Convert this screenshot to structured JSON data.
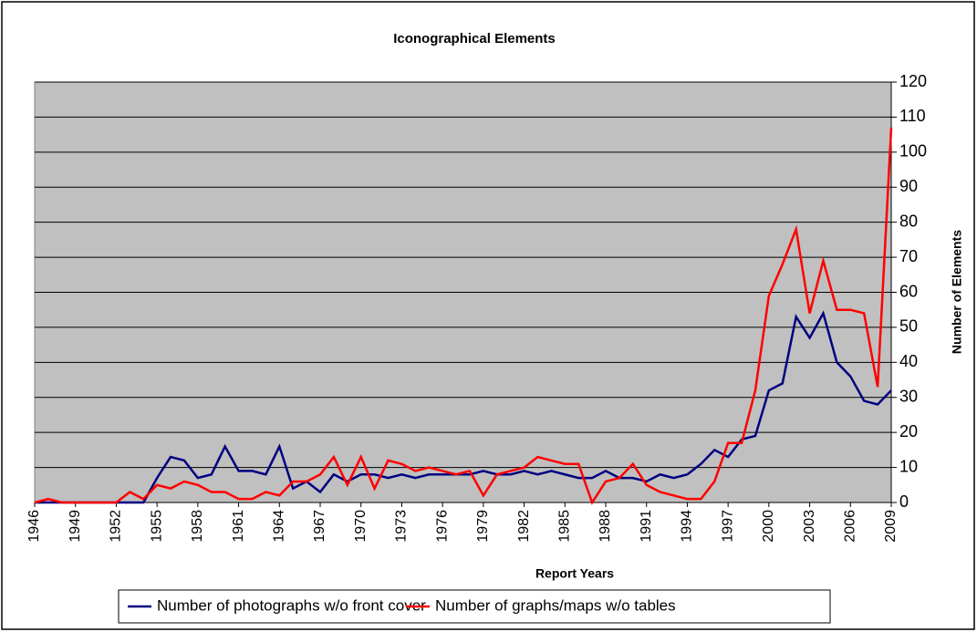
{
  "chart_data": {
    "type": "line",
    "title": "Iconographical Elements",
    "x_label": "Report Years",
    "y_label": "Number of Elements",
    "x": [
      1946,
      1947,
      1948,
      1949,
      1950,
      1951,
      1952,
      1953,
      1954,
      1955,
      1956,
      1957,
      1958,
      1959,
      1960,
      1961,
      1962,
      1963,
      1964,
      1965,
      1966,
      1967,
      1968,
      1969,
      1970,
      1971,
      1972,
      1973,
      1974,
      1975,
      1976,
      1977,
      1978,
      1979,
      1980,
      1981,
      1982,
      1983,
      1984,
      1985,
      1986,
      1987,
      1988,
      1989,
      1990,
      1991,
      1992,
      1993,
      1994,
      1995,
      1996,
      1997,
      1998,
      1999,
      2000,
      2001,
      2002,
      2003,
      2004,
      2005,
      2006,
      2007,
      2008,
      2009
    ],
    "xlim": [
      1946,
      2009
    ],
    "xticks": [
      1946,
      1949,
      1952,
      1955,
      1958,
      1961,
      1964,
      1967,
      1970,
      1973,
      1976,
      1979,
      1982,
      1985,
      1988,
      1991,
      1994,
      1997,
      2000,
      2003,
      2006,
      2009
    ],
    "ylim": [
      0,
      120
    ],
    "yticks": [
      0,
      10,
      20,
      30,
      40,
      50,
      60,
      70,
      80,
      90,
      100,
      110,
      120
    ],
    "y_axis_side": "right",
    "grid": true,
    "legend_position": "bottom",
    "plot_background": "#c0c0c0",
    "series": [
      {
        "name": "Number of photographs w/o front cover",
        "color": "#000080",
        "values": [
          0,
          0,
          0,
          0,
          0,
          0,
          0,
          0,
          0,
          7,
          13,
          12,
          7,
          8,
          16,
          9,
          9,
          8,
          16,
          4,
          6,
          3,
          8,
          6,
          8,
          8,
          7,
          8,
          7,
          8,
          8,
          8,
          8,
          9,
          8,
          8,
          9,
          8,
          9,
          8,
          7,
          7,
          9,
          7,
          7,
          6,
          8,
          7,
          8,
          11,
          15,
          13,
          18,
          19,
          32,
          34,
          53,
          47,
          54,
          40,
          36,
          29,
          28,
          32
        ]
      },
      {
        "name": "Number of graphs/maps w/o tables",
        "color": "#ff0000",
        "values": [
          0,
          1,
          0,
          0,
          0,
          0,
          0,
          3,
          1,
          5,
          4,
          6,
          5,
          3,
          3,
          1,
          1,
          3,
          2,
          6,
          6,
          8,
          13,
          5,
          13,
          4,
          12,
          11,
          9,
          10,
          9,
          8,
          9,
          2,
          8,
          9,
          10,
          13,
          12,
          11,
          11,
          0,
          6,
          7,
          11,
          5,
          3,
          2,
          1,
          1,
          6,
          17,
          17,
          32,
          59,
          68,
          78,
          54,
          69,
          55,
          55,
          54,
          33,
          107
        ]
      }
    ]
  }
}
